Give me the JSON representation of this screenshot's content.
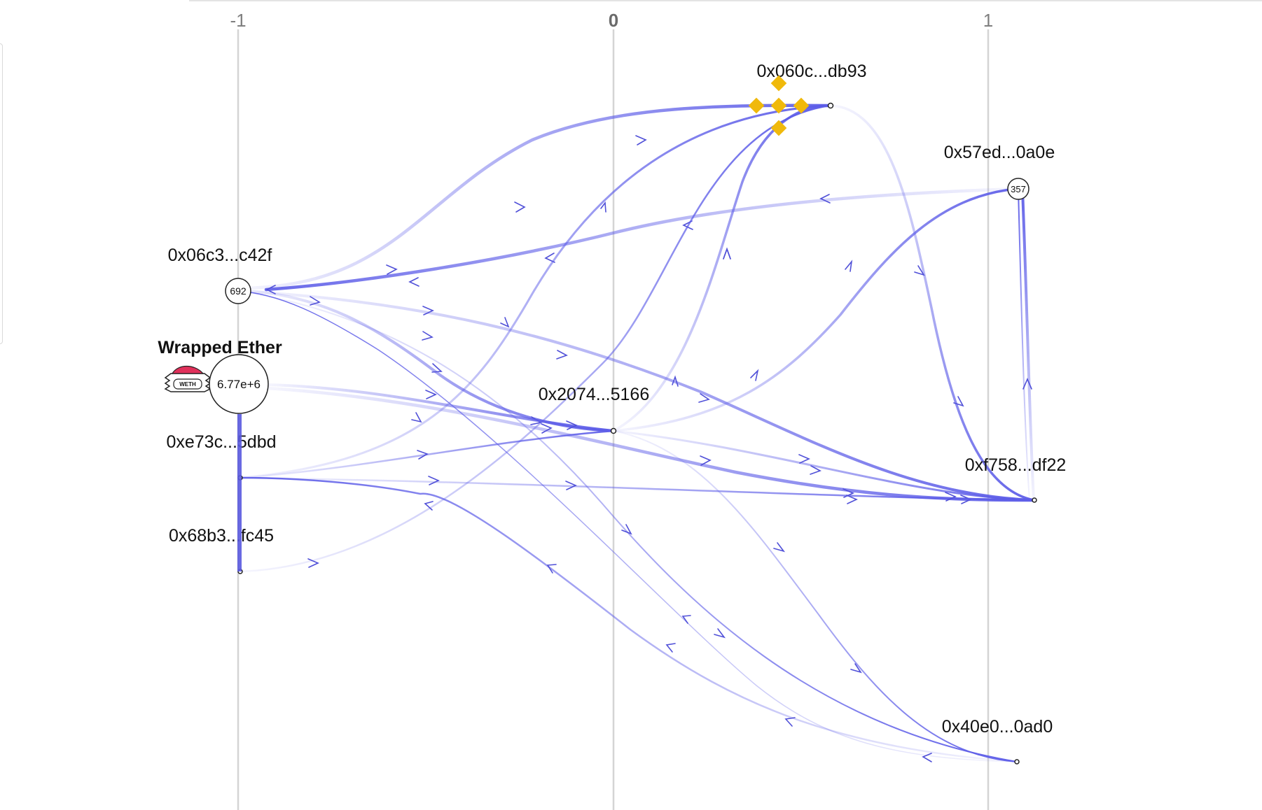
{
  "axis": {
    "ticks": [
      {
        "label": "-1",
        "value": -1
      },
      {
        "label": "0",
        "value": 0
      },
      {
        "label": "1",
        "value": 1
      }
    ]
  },
  "nodes": {
    "n060c": {
      "label": "0x060c...db93",
      "value": "",
      "icon": "binance-icon",
      "icon_color": "#f0b90b"
    },
    "n57ed": {
      "label": "0x57ed...0a0e",
      "value": "357"
    },
    "n06c3": {
      "label": "0x06c3...c42f",
      "value": "692"
    },
    "weth": {
      "label": "Wrapped Ether",
      "value": "6.77e+6",
      "icon": "weth-icon"
    },
    "n2074": {
      "label": "0x2074...5166",
      "value": ""
    },
    "ne73c": {
      "label": "0xe73c...5dbd",
      "value": ""
    },
    "nf758": {
      "label": "0xf758...df22",
      "value": ""
    },
    "n68b3": {
      "label": "0x68b3...fc45",
      "value": ""
    },
    "n40e0": {
      "label": "0x40e0...0ad0",
      "value": ""
    }
  },
  "edges": [
    {
      "from": "n06c3",
      "to": "n060c"
    },
    {
      "from": "n57ed",
      "to": "n06c3"
    },
    {
      "from": "n06c3",
      "to": "n2074"
    },
    {
      "from": "n06c3",
      "to": "nf758"
    },
    {
      "from": "n06c3",
      "to": "n40e0"
    },
    {
      "from": "weth",
      "to": "n2074"
    },
    {
      "from": "weth",
      "to": "nf758"
    },
    {
      "from": "ne73c",
      "to": "n060c"
    },
    {
      "from": "ne73c",
      "to": "n2074"
    },
    {
      "from": "ne73c",
      "to": "nf758"
    },
    {
      "from": "n68b3",
      "to": "n060c"
    },
    {
      "from": "n2074",
      "to": "n060c"
    },
    {
      "from": "n2074",
      "to": "n57ed"
    },
    {
      "from": "n2074",
      "to": "nf758"
    },
    {
      "from": "n2074",
      "to": "n40e0"
    },
    {
      "from": "n060c",
      "to": "nf758"
    },
    {
      "from": "nf758",
      "to": "n57ed"
    },
    {
      "from": "n40e0",
      "to": "ne73c"
    },
    {
      "from": "n40e0",
      "to": "n06c3"
    }
  ],
  "colors": {
    "edge": "#5d5de8",
    "grid": "#d4d4d4",
    "node_stroke": "#222222"
  }
}
